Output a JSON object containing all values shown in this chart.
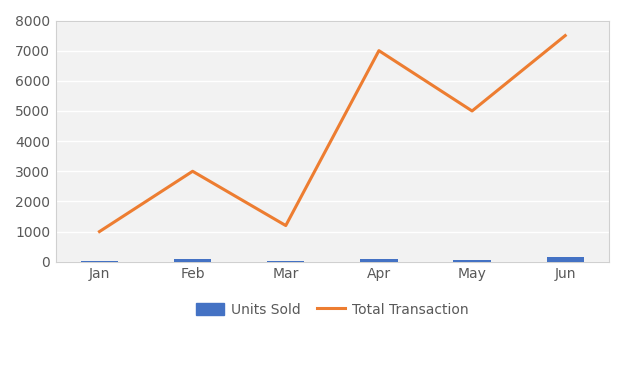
{
  "categories": [
    "Jan",
    "Feb",
    "Mar",
    "Apr",
    "May",
    "Jun"
  ],
  "units_sold": [
    10,
    100,
    10,
    100,
    50,
    150
  ],
  "total_transaction": [
    1000,
    3000,
    1200,
    7000,
    5000,
    7500
  ],
  "units_color": "#4472C4",
  "transaction_color": "#ED7D31",
  "ylim": [
    0,
    8000
  ],
  "yticks": [
    0,
    1000,
    2000,
    3000,
    4000,
    5000,
    6000,
    7000,
    8000
  ],
  "legend_labels": [
    "Units Sold",
    "Total Transaction"
  ],
  "plot_bg_color": "#f2f2f2",
  "fig_bg_color": "#ffffff",
  "grid_color": "#ffffff",
  "border_color": "#d0d0d0",
  "tick_color": "#595959",
  "line_width": 2.2,
  "bar_width": 0.4
}
